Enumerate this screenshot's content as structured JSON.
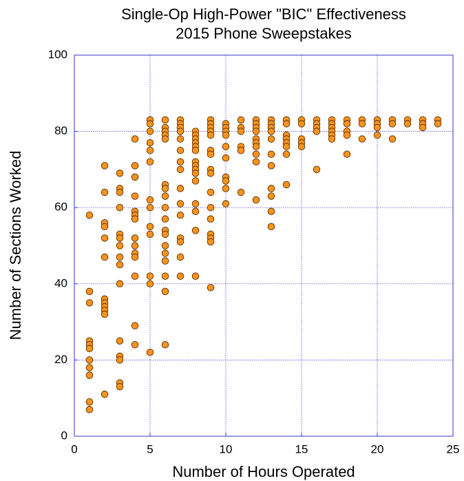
{
  "chart_data": {
    "type": "scatter",
    "title": "Single-Op High-Power \"BIC\" Effectiveness",
    "subtitle": "2015 Phone Sweepstakes",
    "xlabel": "Number of Hours Operated",
    "ylabel": "Number of Sections Worked",
    "color": "#f7931e",
    "grid": true,
    "xlim": [
      0,
      25
    ],
    "xticks": [
      0,
      5,
      10,
      15,
      20,
      25
    ],
    "ylim": [
      0,
      100
    ],
    "yticks": [
      0,
      20,
      40,
      60,
      80,
      100
    ],
    "x": [
      1,
      1,
      1,
      1,
      1,
      1,
      1,
      1,
      1,
      1,
      1,
      2,
      2,
      2,
      2,
      2,
      2,
      2,
      2,
      2,
      2,
      2,
      2,
      3,
      3,
      3,
      3,
      3,
      3,
      3,
      3,
      3,
      3,
      3,
      3,
      3,
      3,
      3,
      4,
      4,
      4,
      4,
      4,
      4,
      4,
      4,
      4,
      4,
      4,
      4,
      4,
      4,
      5,
      5,
      5,
      5,
      5,
      5,
      5,
      5,
      5,
      5,
      5,
      5,
      5,
      6,
      6,
      6,
      6,
      6,
      6,
      6,
      6,
      6,
      6,
      6,
      6,
      6,
      6,
      6,
      6,
      6,
      6,
      7,
      7,
      7,
      7,
      7,
      7,
      7,
      7,
      7,
      7,
      7,
      7,
      7,
      7,
      7,
      8,
      8,
      8,
      8,
      8,
      8,
      8,
      8,
      8,
      8,
      8,
      8,
      8,
      8,
      8,
      9,
      9,
      9,
      9,
      9,
      9,
      9,
      9,
      9,
      9,
      9,
      9,
      9,
      9,
      9,
      9,
      10,
      10,
      10,
      10,
      10,
      10,
      10,
      10,
      10,
      10,
      11,
      11,
      11,
      11,
      11,
      11,
      12,
      12,
      12,
      12,
      12,
      12,
      12,
      12,
      12,
      12,
      13,
      13,
      13,
      13,
      13,
      13,
      13,
      13,
      13,
      13,
      13,
      14,
      14,
      14,
      14,
      14,
      14,
      14,
      14,
      15,
      15,
      15,
      15,
      15,
      16,
      16,
      16,
      16,
      16,
      17,
      17,
      17,
      17,
      17,
      17,
      18,
      18,
      18,
      18,
      18,
      19,
      19,
      19,
      20,
      20,
      20,
      20,
      21,
      21,
      21,
      22,
      22,
      23,
      23,
      23,
      24,
      24
    ],
    "y": [
      58,
      38,
      35,
      25,
      24,
      23,
      20,
      18,
      16,
      9,
      7,
      71,
      64,
      56,
      55,
      52,
      47,
      36,
      35,
      34,
      33,
      32,
      11,
      69,
      65,
      64,
      60,
      53,
      52,
      50,
      47,
      45,
      40,
      25,
      21,
      20,
      14,
      13,
      78,
      71,
      68,
      63,
      59,
      58,
      57,
      52,
      50,
      48,
      47,
      42,
      29,
      24,
      83,
      82,
      80,
      77,
      75,
      72,
      62,
      60,
      55,
      53,
      42,
      40,
      22,
      83,
      81,
      80,
      79,
      78,
      66,
      65,
      63,
      60,
      57,
      54,
      53,
      50,
      48,
      46,
      42,
      38,
      24,
      83,
      82,
      81,
      80,
      78,
      75,
      72,
      70,
      65,
      61,
      58,
      52,
      51,
      47,
      42,
      80,
      79,
      78,
      77,
      76,
      75,
      72,
      71,
      70,
      69,
      67,
      61,
      59,
      54,
      42,
      83,
      82,
      81,
      80,
      79,
      75,
      74,
      70,
      69,
      64,
      60,
      57,
      53,
      52,
      51,
      39,
      82,
      81,
      80,
      79,
      76,
      73,
      68,
      67,
      65,
      61,
      83,
      81,
      80,
      76,
      75,
      64,
      83,
      82,
      81,
      80,
      78,
      77,
      76,
      74,
      72,
      62,
      83,
      82,
      81,
      80,
      78,
      74,
      71,
      65,
      63,
      59,
      55,
      83,
      82,
      79,
      78,
      77,
      76,
      74,
      66,
      83,
      82,
      78,
      77,
      76,
      83,
      82,
      81,
      80,
      70,
      83,
      82,
      81,
      80,
      79,
      78,
      83,
      82,
      80,
      79,
      74,
      83,
      82,
      78,
      83,
      82,
      81,
      79,
      83,
      82,
      78,
      83,
      82,
      83,
      82,
      81,
      83,
      82
    ]
  }
}
